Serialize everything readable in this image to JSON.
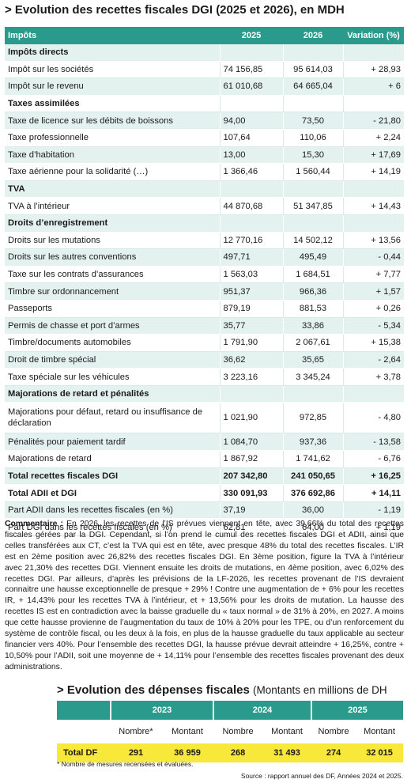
{
  "title": "> Evolution des recettes fiscales DGI (2025 et 2026), en MDH",
  "headers": [
    "Impôts",
    "2025",
    "2026",
    "Variation (%)"
  ],
  "rows": [
    {
      "type": "sec",
      "label": "Impôts directs",
      "v2025": "",
      "v2026": "",
      "var": ""
    },
    {
      "type": "row",
      "label": "Impôt sur les sociétés",
      "v2025": "74 156,85",
      "v2026": "95 614,03",
      "var": "+ 28,93"
    },
    {
      "type": "row",
      "label": "Impôt sur le revenu",
      "v2025": "61 010,68",
      "v2026": "64 665,04",
      "var": "+ 6"
    },
    {
      "type": "sec",
      "label": "Taxes assimilées",
      "v2025": "",
      "v2026": "",
      "var": ""
    },
    {
      "type": "row",
      "label": "Taxe de licence sur les débits de boissons",
      "v2025": "94,00",
      "v2026": "73,50",
      "var": "- 21,80"
    },
    {
      "type": "row",
      "label": "Taxe professionnelle",
      "v2025": "107,64",
      "v2026": "110,06",
      "var": "+ 2,24"
    },
    {
      "type": "row",
      "label": "Taxe d’habitation",
      "v2025": "13,00",
      "v2026": "15,30",
      "var": "+ 17,69"
    },
    {
      "type": "row",
      "label": "Taxe aérienne pour la solidarité (…)",
      "v2025": "1 366,46",
      "v2026": "1 560,44",
      "var": "+ 14,19"
    },
    {
      "type": "sec",
      "label": "TVA",
      "v2025": "",
      "v2026": "",
      "var": ""
    },
    {
      "type": "row",
      "label": "TVA à l’intérieur",
      "v2025": "44 870,68",
      "v2026": "51 347,85",
      "var": "+ 14,43"
    },
    {
      "type": "sec",
      "label": "Droits d’enregistrement",
      "v2025": "",
      "v2026": "",
      "var": ""
    },
    {
      "type": "row",
      "label": "Droits sur les mutations",
      "v2025": "12 770,16",
      "v2026": "14 502,12",
      "var": "+ 13,56"
    },
    {
      "type": "row",
      "label": "Droits sur les autres conventions",
      "v2025": "497,71",
      "v2026": "495,49",
      "var": "- 0,44"
    },
    {
      "type": "row",
      "label": "Taxe sur les contrats d’assurances",
      "v2025": "1 563,03",
      "v2026": "1 684,51",
      "var": "+ 7,77"
    },
    {
      "type": "row",
      "label": "Timbre sur ordonnancement",
      "v2025": "951,37",
      "v2026": "966,36",
      "var": "+ 1,57"
    },
    {
      "type": "row",
      "label": "Passeports",
      "v2025": "879,19",
      "v2026": "881,53",
      "var": "+ 0,26"
    },
    {
      "type": "row",
      "label": "Permis de chasse et port d’armes",
      "v2025": "35,77",
      "v2026": "33,86",
      "var": "- 5,34"
    },
    {
      "type": "row",
      "label": "Timbre/documents automobiles",
      "v2025": "1 791,90",
      "v2026": "2 067,61",
      "var": "+ 15,38"
    },
    {
      "type": "row",
      "label": "Droit de timbre spécial",
      "v2025": "36,62",
      "v2026": "35,65",
      "var": "- 2,64"
    },
    {
      "type": "row",
      "label": "Taxe spéciale sur les véhicules",
      "v2025": "3 223,16",
      "v2026": "3 345,24",
      "var": "+ 3,78"
    },
    {
      "type": "sec",
      "label": "Majorations de retard et pénalités",
      "v2025": "",
      "v2026": "",
      "var": ""
    },
    {
      "type": "two",
      "label": "Majorations pour défaut, retard ou insuffisance de déclaration",
      "v2025": "1 021,90",
      "v2026": "972,85",
      "var": "- 4,80"
    },
    {
      "type": "row",
      "label": "Pénalités pour paiement tardif",
      "v2025": "1 084,70",
      "v2026": "937,36",
      "var": "- 13,58"
    },
    {
      "type": "row",
      "label": "Majorations de retard",
      "v2025": "1 867,92",
      "v2026": "1 741,62",
      "var": "- 6,76"
    },
    {
      "type": "tot",
      "label": "Total recettes fiscales DGI",
      "v2025": "207 342,80",
      "v2026": "241 050,65",
      "var": "+ 16,25"
    },
    {
      "type": "tot",
      "label": "Total ADII et DGI",
      "v2025": "330 091,93",
      "v2026": "376 692,86",
      "var": "+ 14,11"
    },
    {
      "type": "row",
      "label": "Part ADII dans les recettes fiscales (en %)",
      "v2025": "37,19",
      "v2026": "36,00",
      "var": "- 1,19"
    },
    {
      "type": "row",
      "label": "Part DGI dans les recettes fiscales (en %)",
      "v2025": "62,81",
      "v2026": "64,00",
      "var": "+ 1,19"
    }
  ],
  "comment": {
    "label": "Commentaire :",
    "text": "En 2026, les recettes de l’IS prévues viennent en tête, avec 39,66% du total des recettes fiscales gérées par la DGI. Cependant, si l’on prend le cumul des recettes fiscales DGI et ADII, ainsi que celles transférées aux CT, c’est la TVA qui est en tête, avec presque 48% du total des recettes fiscales. L’IR est en 2ème position avec 26,82% des recettes fiscales DGI. En 3ème position, figure la TVA à l’intérieur avec 21,30% des recettes DGI. Viennent ensuite les droits de mutations, en 4ème position, avec 6,02% des recettes DGI. Par ailleurs, d’après les prévisions de la LF-2026, les recettes provenant de l’IS devraient connaitre une hausse exceptionnelle de presque + 29% ! Contre une augmentation de + 6% pour les recettes IR, + 14,43% pour les recettes TVA à l’intérieur, et + 13,56% pour les droits de mutation. La hausse des recettes IS est en contradiction avec la baisse graduelle du « taux normal » de 31% à 20%, en 2027. A moins que cette hausse provienne de l’augmentation du taux de 10% à 20% pour les TPE, ou d’un renforcement du système de contrôle fiscal, ou les deux à la fois, en plus de la hausse graduelle du taux applicable au secteur financier vers 40%. Pour l’ensemble des recettes DGI, la hausse prévue devrait atteindre + 16,25%, contre + 10,50% pour l’ADII, soit une moyenne de + 14,11% pour l’ensemble des recettes fiscales provenant des deux administrations."
  },
  "df": {
    "title": "> Evolution des dépenses fiscales",
    "subtitle": "(Montants en millions de DH",
    "years": [
      "2023",
      "2024",
      "2025"
    ],
    "col_nombre": [
      "Nombre*",
      "Nombre",
      "Nombre"
    ],
    "col_montant": [
      "Montant",
      "Montant",
      "Montant"
    ],
    "total_label": "Total DF",
    "total_values": [
      "291",
      "36 959",
      "268",
      "31 493",
      "274",
      "32 015"
    ],
    "footnote": "* Nombre de mesures recensées et évaluées.",
    "source": "Source : rapport annuel des DF, Années 2024 et 2025."
  }
}
